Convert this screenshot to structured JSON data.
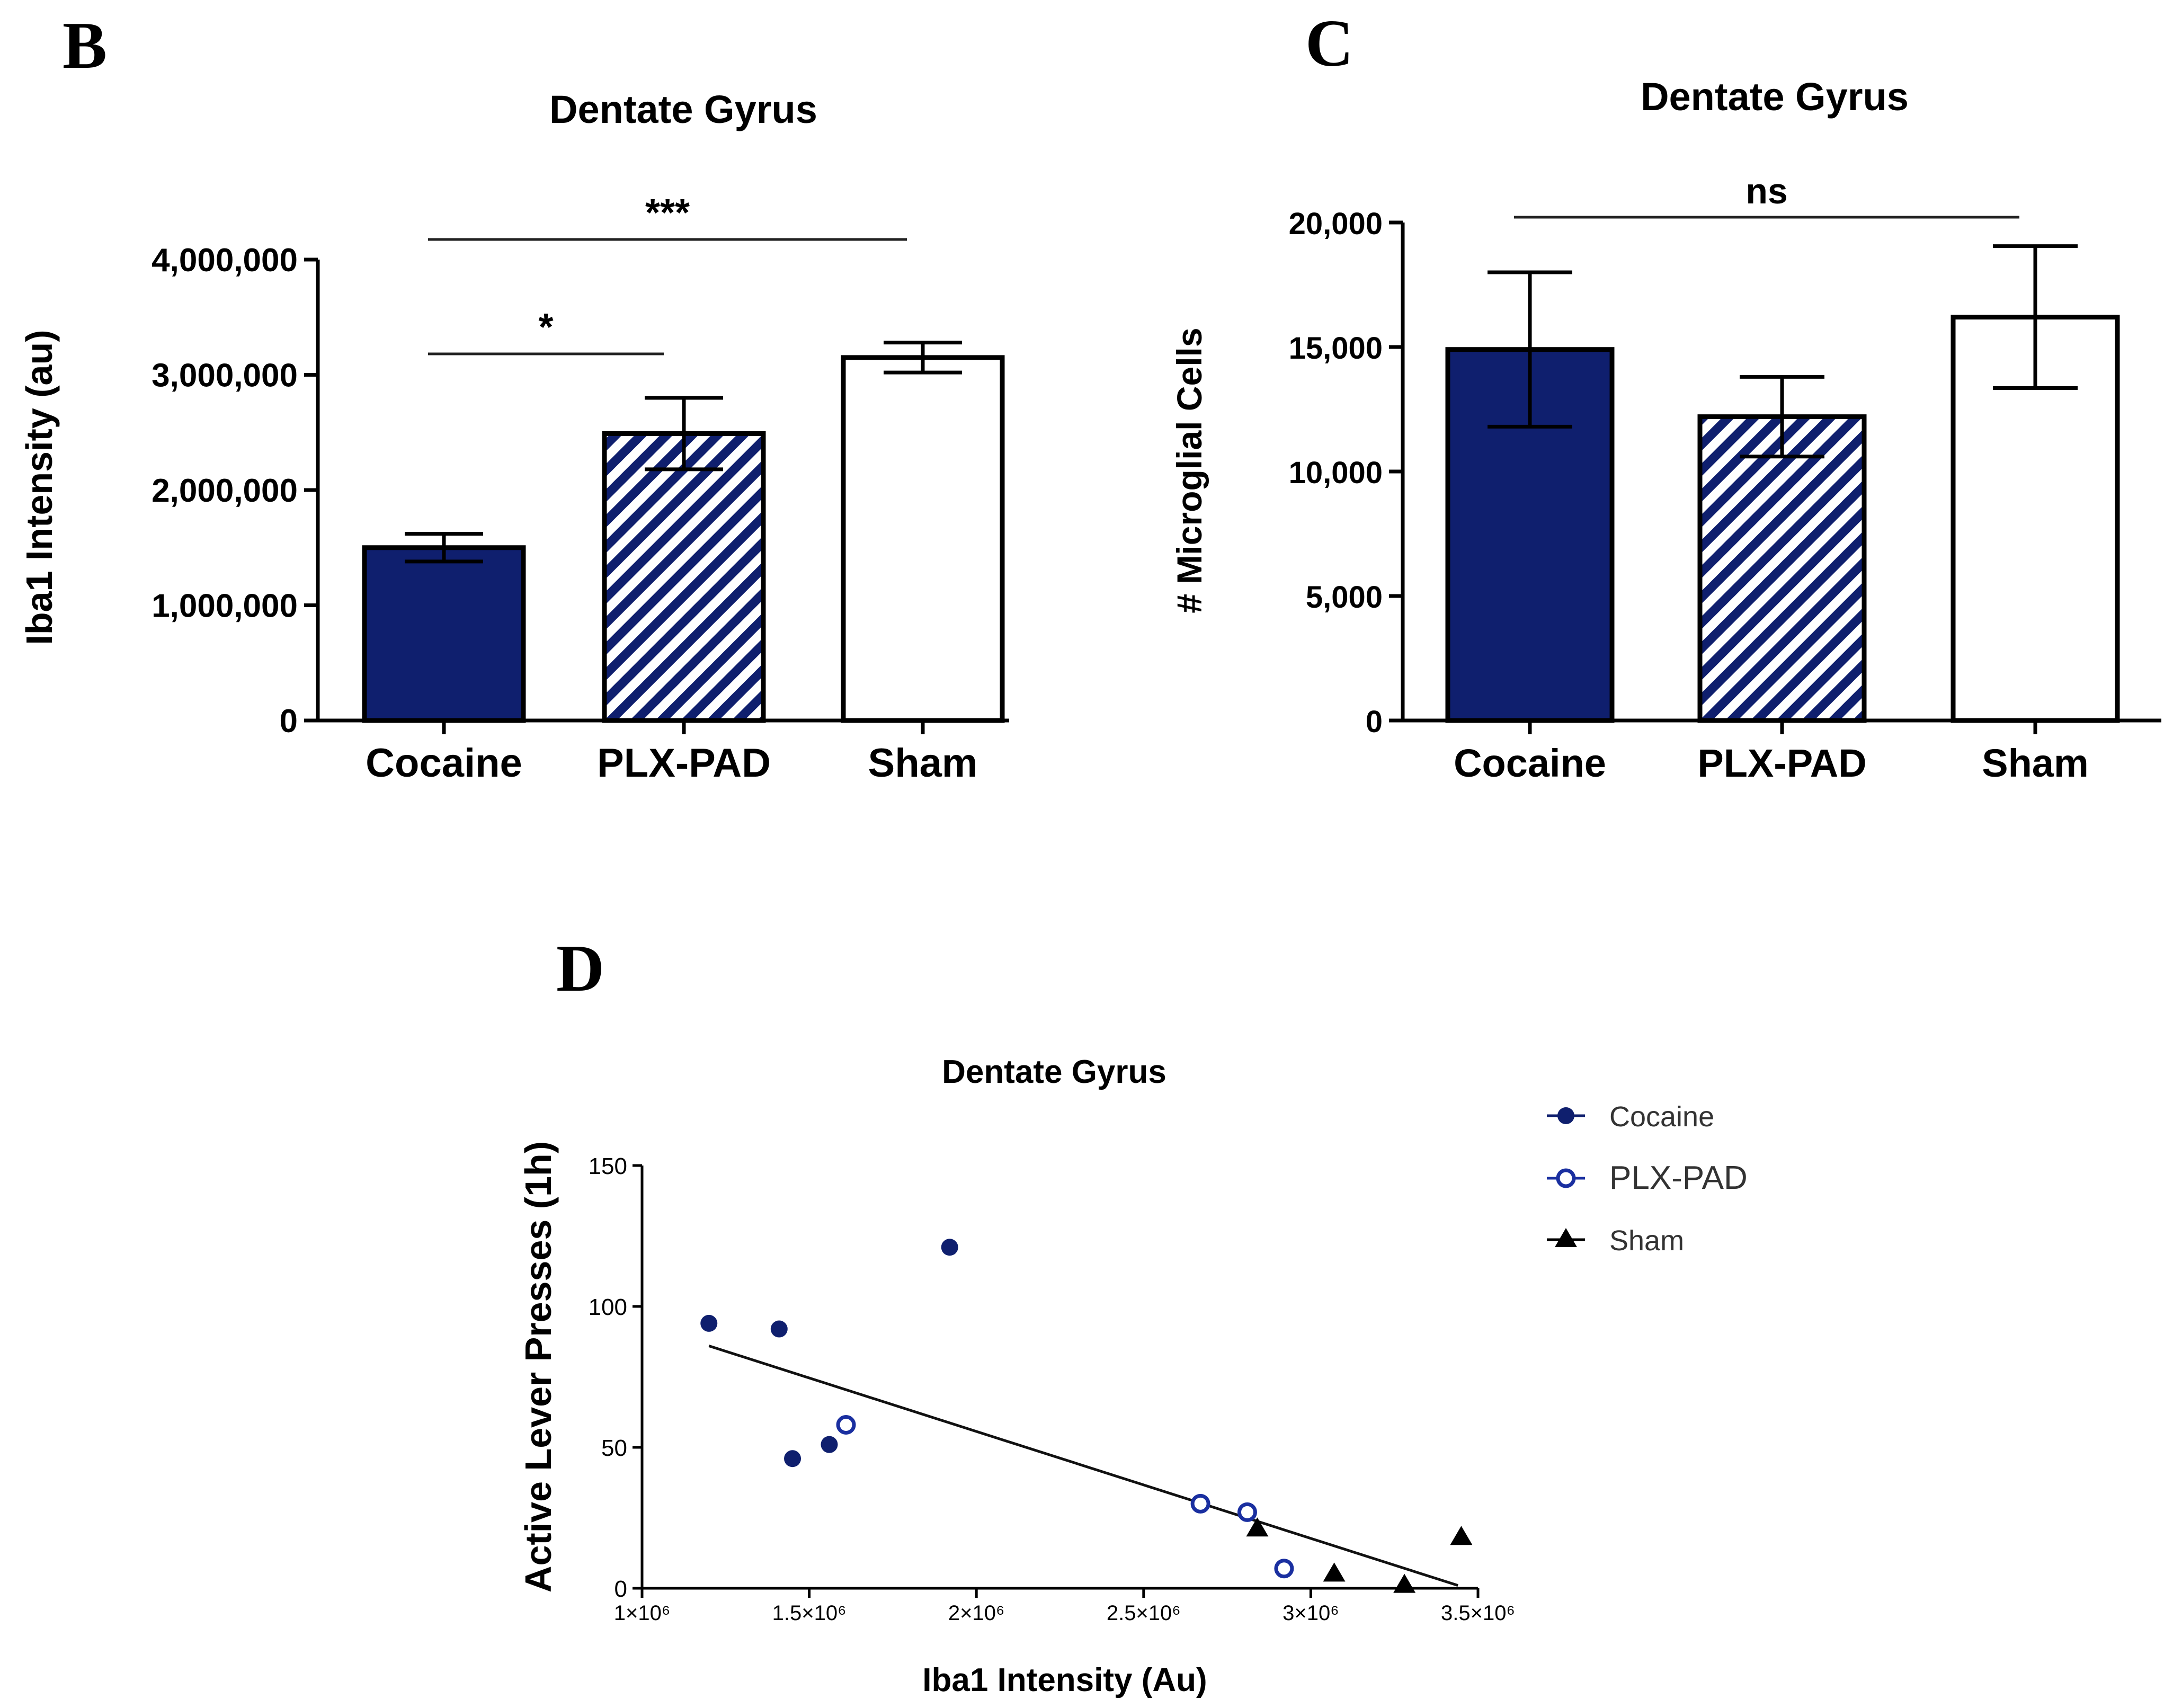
{
  "panels": {
    "B": {
      "letter": "B",
      "chart_data": {
        "type": "bar",
        "title": "Dentate Gyrus",
        "xlabel": "",
        "ylabel": "Iba1 Intensity (au)",
        "categories": [
          "Cocaine",
          "PLX-PAD",
          "Sham"
        ],
        "values": [
          1500000,
          2490000,
          3150000
        ],
        "error": [
          120000,
          310000,
          130000
        ],
        "ylim": [
          0,
          4000000
        ],
        "yticks": [
          0,
          1000000,
          2000000,
          3000000,
          4000000
        ],
        "ytick_labels": [
          "0",
          "1,000,000",
          "2,000,000",
          "3,000,000",
          "4,000,000"
        ],
        "fills": [
          "solid",
          "hatched",
          "open"
        ],
        "significance": [
          {
            "from": 0,
            "to": 1,
            "label": "*"
          },
          {
            "from": 0,
            "to": 2,
            "label": "***"
          }
        ]
      }
    },
    "C": {
      "letter": "C",
      "chart_data": {
        "type": "bar",
        "title": "Dentate Gyrus",
        "xlabel": "",
        "ylabel": "# Microglial Cells",
        "categories": [
          "Cocaine",
          "PLX-PAD",
          "Sham"
        ],
        "values": [
          14900,
          12200,
          16200
        ],
        "error": [
          3100,
          1600,
          2850
        ],
        "ylim": [
          0,
          20000
        ],
        "yticks": [
          0,
          5000,
          10000,
          15000,
          20000
        ],
        "ytick_labels": [
          "0",
          "5,000",
          "10,000",
          "15,000",
          "20,000"
        ],
        "fills": [
          "solid",
          "hatched",
          "open"
        ],
        "significance": [
          {
            "from": 0,
            "to": 2,
            "label": "ns"
          }
        ]
      }
    },
    "D": {
      "letter": "D",
      "chart_data": {
        "type": "scatter",
        "title": "Dentate Gyrus",
        "xlabel": "Iba1 Intensity (Au)",
        "ylabel": "Active Lever Presses (1h)",
        "xlim": [
          1000000,
          3500000
        ],
        "ylim": [
          0,
          150
        ],
        "xticks": [
          1000000,
          1500000,
          2000000,
          2500000,
          3000000,
          3500000
        ],
        "xtick_labels": [
          "1×10⁶",
          "1.5×10⁶",
          "2×10⁶",
          "2.5×10⁶",
          "3×10⁶",
          "3.5×10⁶"
        ],
        "yticks": [
          0,
          50,
          100,
          150
        ],
        "ytick_labels": [
          "0",
          "50",
          "100",
          "150"
        ],
        "series": [
          {
            "name": "Cocaine",
            "marker": "filled-circle",
            "points": [
              [
                1200000,
                94
              ],
              [
                1410000,
                92
              ],
              [
                1450000,
                46
              ],
              [
                1560000,
                51
              ],
              [
                1920000,
                121
              ]
            ]
          },
          {
            "name": "PLX-PAD",
            "marker": "open-circle",
            "points": [
              [
                1610000,
                58
              ],
              [
                2670000,
                30
              ],
              [
                2810000,
                27
              ],
              [
                2920000,
                7
              ]
            ]
          },
          {
            "name": "Sham",
            "marker": "triangle",
            "points": [
              [
                2840000,
                21
              ],
              [
                3070000,
                5
              ],
              [
                3280000,
                1
              ],
              [
                3450000,
                18
              ]
            ]
          }
        ],
        "fit_line": {
          "x": [
            1200000,
            3440000
          ],
          "y": [
            86,
            1
          ]
        },
        "legend_position": "top-right"
      }
    }
  },
  "colors": {
    "navy": "#0f1f6e",
    "axis": "#000000",
    "line": "#222222"
  }
}
